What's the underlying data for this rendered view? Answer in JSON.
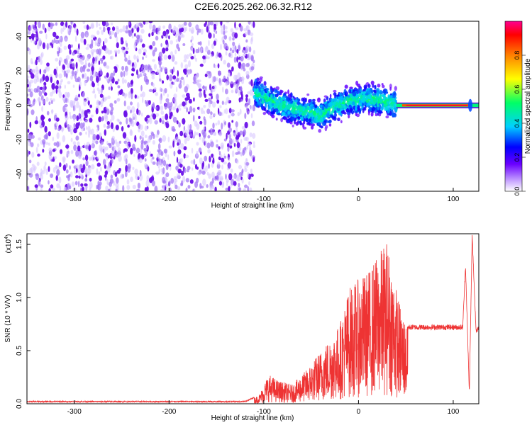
{
  "figure_title": "C2E6.2025.262.06.32.R12",
  "chart_data": [
    {
      "type": "heatmap",
      "name": "spectrogram",
      "xlabel": "Height of straight line (km)",
      "ylabel": "Frequency (Hz)",
      "xlim": [
        -350,
        127
      ],
      "ylim": [
        -50,
        49
      ],
      "xticks": [
        -300,
        -200,
        -100,
        0,
        100
      ],
      "yticks": [
        -40,
        -20,
        0,
        20,
        40
      ],
      "colorbar": {
        "label": "Normalized spectral amplitude",
        "range": [
          0,
          1
        ],
        "ticks": [
          0.0,
          0.2,
          0.4,
          0.6,
          0.8
        ],
        "tick_labels": [
          "0.0",
          "0.2",
          "0.4",
          "0.6",
          "0.8"
        ],
        "colors": [
          "#ffffff",
          "#c8a6ff",
          "#6a00ff",
          "#0000ff",
          "#00d0ff",
          "#00ff66",
          "#ffff00",
          "#ff8000",
          "#ff0000",
          "#ff00a0"
        ]
      },
      "regions": [
        {
          "name": "noise",
          "x_range": [
            -350,
            -110
          ],
          "freq_range": [
            -50,
            49
          ],
          "amplitude": 0.05
        },
        {
          "name": "turbulent",
          "x_range": [
            -110,
            40
          ],
          "freq_center": [
            [
              -110,
              8
            ],
            [
              -90,
              2
            ],
            [
              -70,
              -2
            ],
            [
              -50,
              -4
            ],
            [
              -40,
              -6
            ],
            [
              -30,
              -2
            ],
            [
              -10,
              3
            ],
            [
              10,
              4
            ],
            [
              30,
              2
            ],
            [
              40,
              1
            ]
          ],
          "freq_spread": 12,
          "amplitude": 0.4
        },
        {
          "name": "stable_tone",
          "x_range": [
            40,
            127
          ],
          "freq_center": 0,
          "amplitude": 0.95
        }
      ]
    },
    {
      "type": "line",
      "name": "snr",
      "xlabel": "Height of straight line (km)",
      "ylabel": "SNR (10 * V/V)",
      "scale_label_prefix": "(x10",
      "scale_exponent": "4",
      "scale_label_suffix": ")",
      "xlim": [
        -350,
        127
      ],
      "ylim": [
        0,
        1.6
      ],
      "xticks": [
        -300,
        -200,
        -100,
        0,
        100
      ],
      "yticks": [
        0.0,
        0.5,
        1.0,
        1.5
      ],
      "ytick_labels": [
        "0.0",
        "0.5",
        "1.0",
        "1.5"
      ],
      "color": "#ee3333",
      "envelope": [
        {
          "x": -350,
          "y": 0.02
        },
        {
          "x": -120,
          "y": 0.02
        },
        {
          "x": -105,
          "y": 0.08
        },
        {
          "x": -95,
          "y": 0.28
        },
        {
          "x": -85,
          "y": 0.22
        },
        {
          "x": -70,
          "y": 0.18
        },
        {
          "x": -55,
          "y": 0.32
        },
        {
          "x": -40,
          "y": 0.5
        },
        {
          "x": -20,
          "y": 0.75
        },
        {
          "x": -10,
          "y": 1.1
        },
        {
          "x": 10,
          "y": 1.25
        },
        {
          "x": 30,
          "y": 1.55
        },
        {
          "x": 42,
          "y": 1.0
        },
        {
          "x": 52,
          "y": 0.72
        },
        {
          "x": 110,
          "y": 0.72
        },
        {
          "x": 113,
          "y": 1.3
        },
        {
          "x": 117,
          "y": 0.1
        },
        {
          "x": 120,
          "y": 1.58
        },
        {
          "x": 124,
          "y": 0.7
        },
        {
          "x": 127,
          "y": 0.7
        }
      ]
    }
  ]
}
